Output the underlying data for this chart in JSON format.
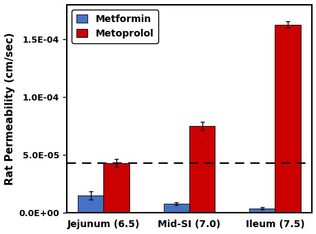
{
  "categories": [
    "Jejunum (6.5)",
    "Mid-SI (7.0)",
    "Ileum (7.5)"
  ],
  "metformin_values": [
    1.5e-05,
    8e-06,
    4e-06
  ],
  "metoprolol_values": [
    4.3e-05,
    7.5e-05,
    0.000163
  ],
  "metformin_errors": [
    3.5e-06,
    1e-06,
    8e-07
  ],
  "metoprolol_errors": [
    3.5e-06,
    3.5e-06,
    2.5e-06
  ],
  "metformin_color": "#4472C4",
  "metoprolol_color": "#CC0000",
  "dashed_line_y": 4.3e-05,
  "ylabel": "Rat Permeability (cm/sec)",
  "ylim": [
    0,
    0.00018
  ],
  "yticks": [
    0,
    5e-05,
    0.0001,
    0.00015
  ],
  "ytick_labels": [
    "0.0E+00",
    "5.0E-05",
    "1.0E-04",
    "1.5E-04"
  ],
  "legend_labels": [
    "Metformin",
    "Metoprolol"
  ],
  "bar_width": 0.3,
  "background_color": "#ffffff",
  "axis_fontsize": 11,
  "tick_fontsize": 9,
  "legend_fontsize": 10
}
